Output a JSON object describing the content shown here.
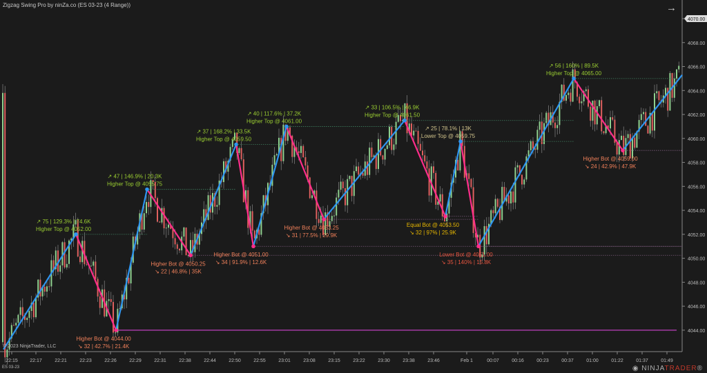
{
  "window": {
    "title": "Zigzag Swing Pro by ninZa.co (ES 03-23 (4 Range))",
    "instrument": "ES 03-23",
    "copyright": "© 2023 NinjaTrader, LLC",
    "logo": "NINJATRADER",
    "nav_icon": "arrow-right-icon"
  },
  "colors": {
    "up_leg": "#2e95f0",
    "down_leg": "#ff2d8a",
    "higher": "#9acd32",
    "lower_top": "#d2c48c",
    "equal": "#e8b800",
    "higher_bot": "#f0805a",
    "lower_bot": "#e8553f",
    "support": "#c040c0",
    "bull": "#8fd18f",
    "bear": "#e0605f"
  },
  "chart_data": {
    "type": "candlestick-zigzag",
    "y_range": [
      4043,
      4071
    ],
    "last_price": "4070.00",
    "y_ticks": [
      "4044.00",
      "4046.00",
      "4048.00",
      "4050.00",
      "4052.00",
      "4054.00",
      "4056.00",
      "4058.00",
      "4060.00",
      "4062.00",
      "4064.00",
      "4066.00",
      "4068.00",
      "4070.00"
    ],
    "x_ticks": [
      "22:15",
      "22:17",
      "22:21",
      "22:23",
      "22:26",
      "22:29",
      "22:31",
      "22:38",
      "22:44",
      "22:50",
      "22:55",
      "23:01",
      "23:08",
      "23:15",
      "23:22",
      "23:30",
      "23:38",
      "23:46",
      "Feb 1",
      "00:07",
      "00:16",
      "00:23",
      "00:37",
      "01:00",
      "01:22",
      "01:37",
      "01:49"
    ],
    "support_level": 4044.0,
    "swings": [
      {
        "type": "top",
        "price": 4052.0,
        "label": "Higher Top @ 4052.00",
        "stats": "↗ 75  |  129.3%  |  74.6K",
        "kind": "higher"
      },
      {
        "type": "bot",
        "price": 4044.0,
        "label": "Higher Bot @ 4044.00",
        "stats": "↘ 32  |  42.7%  |  21.4K",
        "kind": "higher_bot"
      },
      {
        "type": "top",
        "price": 4055.75,
        "label": "Higher Top @ 4055.75",
        "stats": "↗ 47  |  146.9%  |  20.3K",
        "kind": "higher"
      },
      {
        "type": "bot",
        "price": 4050.25,
        "label": "Higher Bot @ 4050.25",
        "stats": "↘ 22  |  46.8%  |  35K",
        "kind": "higher_bot"
      },
      {
        "type": "top",
        "price": 4059.5,
        "label": "Higher Top @ 4059.50",
        "stats": "↗ 37  |  168.2%  |  33.5K",
        "kind": "higher"
      },
      {
        "type": "bot",
        "price": 4051.0,
        "label": "Higher Bot @ 4051.00",
        "stats": "↘ 34  |  91.9%  |  12.6K",
        "kind": "higher_bot"
      },
      {
        "type": "top",
        "price": 4061.0,
        "label": "Higher Top @ 4061.00",
        "stats": "↗ 40  |  117.6%  |  37.2K",
        "kind": "higher"
      },
      {
        "type": "bot",
        "price": 4053.25,
        "label": "Higher Bot @ 4053.25",
        "stats": "↘ 31  |  77.5%  |  29.9K",
        "kind": "higher_bot"
      },
      {
        "type": "top",
        "price": 4061.5,
        "label": "Higher Top @ 4061.50",
        "stats": "↗ 33  |  106.5%  |  46.9K",
        "kind": "higher"
      },
      {
        "type": "bot",
        "price": 4053.5,
        "label": "Equal Bot @ 4053.50",
        "stats": "↘ 32  |  97%  |  25.9K",
        "kind": "equal"
      },
      {
        "type": "top",
        "price": 4059.75,
        "label": "Lower Top @ 4059.75",
        "stats": "↗ 25  |  78.1%  |  13K",
        "kind": "lower_top"
      },
      {
        "type": "bot",
        "price": 4051.0,
        "label": "Lower Bot @ 4051.00",
        "stats": "↘ 35  |  140%  |  15.8K",
        "kind": "lower_bot"
      },
      {
        "type": "top",
        "price": 4065.0,
        "label": "Higher Top @ 4065.00",
        "stats": "↗ 56  |  160%  |  89.5K",
        "kind": "higher"
      },
      {
        "type": "bot",
        "price": 4059.0,
        "label": "Higher Bot @ 4059.00",
        "stats": "↘ 24  |  42.9%  |  47.9K",
        "kind": "higher_bot"
      }
    ]
  }
}
